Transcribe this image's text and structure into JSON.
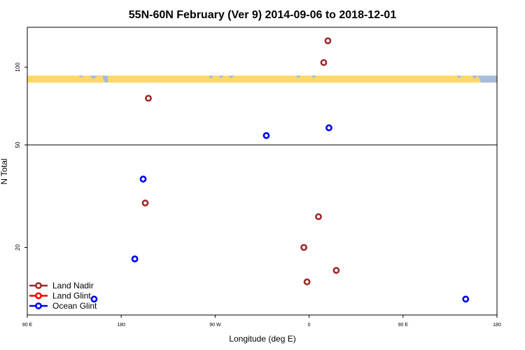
{
  "chart_data": {
    "type": "scatter",
    "title": "55N-60N February (Ver 9)   2014-09-06 to 2018-12-01",
    "xlabel": "Longitude (deg E)",
    "ylabel": "N Total",
    "x_ticks": [
      {
        "value": 90,
        "label": "90 E"
      },
      {
        "value": 180,
        "label": "180"
      },
      {
        "value": 270,
        "label": "90 W"
      },
      {
        "value": 360,
        "label": "0"
      },
      {
        "value": 450,
        "label": "90 E"
      },
      {
        "value": 540,
        "label": "180"
      }
    ],
    "xlim": [
      90,
      540
    ],
    "y_ticks": [
      {
        "value": 20,
        "label": "20"
      },
      {
        "value": 50,
        "label": "50"
      },
      {
        "value": 100,
        "label": "100"
      }
    ],
    "y_scale": "piecewise: non-linear below 50, linear above 50",
    "reference_line_y": 50,
    "grid": false,
    "legend_position": "bottom-left",
    "series": [
      {
        "name": "Land Nadir",
        "color": "#9B2B2B",
        "points": [
          {
            "lon": 206,
            "n": 80
          },
          {
            "lon": 203,
            "n": 33
          },
          {
            "lon": 378,
            "n": 117
          },
          {
            "lon": 374,
            "n": 103
          },
          {
            "lon": 369,
            "n": 29
          },
          {
            "lon": 355,
            "n": 20
          },
          {
            "lon": 358,
            "n": 14
          },
          {
            "lon": 386,
            "n": 16
          }
        ]
      },
      {
        "name": "Land Glint",
        "color": "#FF0000",
        "points": []
      },
      {
        "name": "Ocean Glint",
        "color": "#0000EE",
        "points": [
          {
            "lon": 154,
            "n": 11
          },
          {
            "lon": 193,
            "n": 18
          },
          {
            "lon": 201,
            "n": 40
          },
          {
            "lon": 319,
            "n": 56
          },
          {
            "lon": 379,
            "n": 61
          },
          {
            "lon": 510,
            "n": 11
          }
        ]
      }
    ],
    "colors": {
      "map_land": "#FFD966",
      "map_ocean": "#A8BCD8"
    }
  }
}
